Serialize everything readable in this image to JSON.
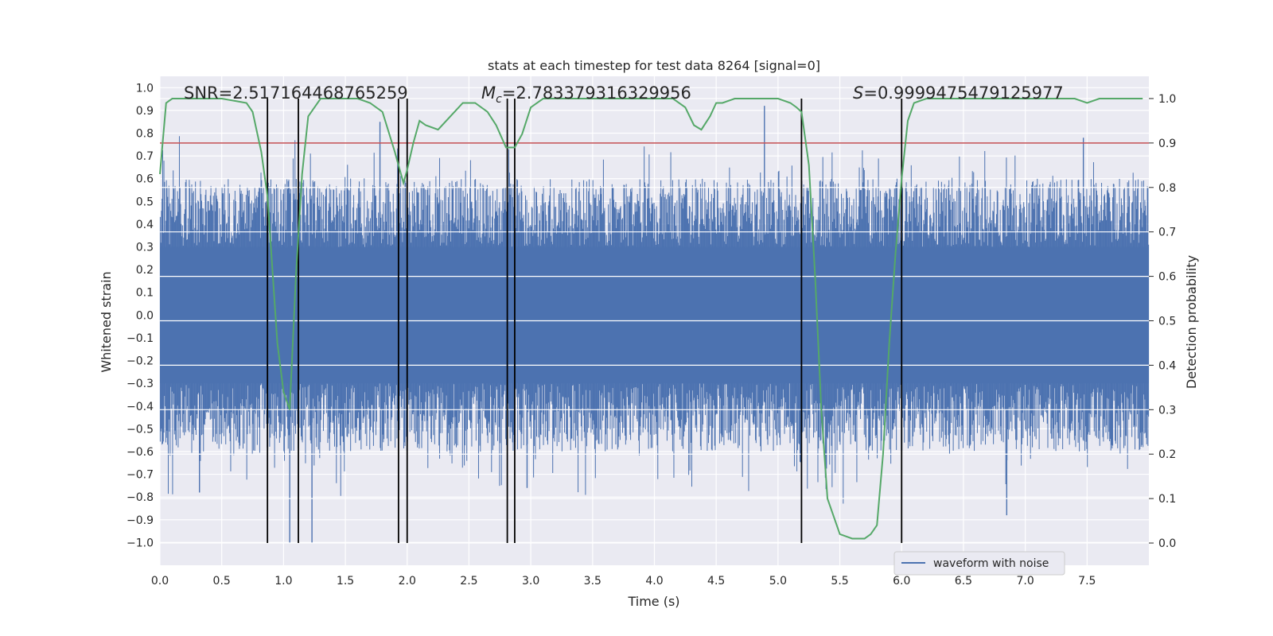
{
  "chart_data": {
    "type": "line",
    "title": "stats at each timestep for test data 8264 [signal=0]",
    "xlabel": "Time (s)",
    "ylabel": "Whitened strain",
    "y2label": "Detection probability",
    "xlim": [
      0.0,
      8.0
    ],
    "ylim": [
      -1.1,
      1.05
    ],
    "y2lim": [
      -0.05,
      1.05
    ],
    "x_ticks": [
      "0.0",
      "0.5",
      "1.0",
      "1.5",
      "2.0",
      "2.5",
      "3.0",
      "3.5",
      "4.0",
      "4.5",
      "5.0",
      "5.5",
      "6.0",
      "6.5",
      "7.0",
      "7.5"
    ],
    "y_ticks": [
      "1.0",
      "0.9",
      "0.8",
      "0.7",
      "0.6",
      "0.5",
      "0.4",
      "0.3",
      "0.2",
      "0.1",
      "0.0",
      "−0.1",
      "−0.2",
      "−0.3",
      "−0.4",
      "−0.5",
      "−0.6",
      "−0.7",
      "−0.8",
      "−0.9",
      "−1.0"
    ],
    "y2_ticks": [
      "1.0",
      "0.9",
      "0.8",
      "0.7",
      "0.6",
      "0.5",
      "0.4",
      "0.3",
      "0.2",
      "0.1",
      "0.0"
    ],
    "annotations": {
      "snr": "SNR=2.517164468765259",
      "mc_symbol": "M",
      "mc_sub": "c",
      "mc_value": "=2.783379316329956",
      "s_symbol": "S",
      "s_value": "=0.9999475479125977"
    },
    "legend": {
      "label": "waveform with noise",
      "position": "lower-right"
    },
    "threshold": {
      "y2": 0.9,
      "color": "#c44e52"
    },
    "vlines": [
      0.87,
      1.12,
      1.93,
      2.0,
      2.81,
      2.87,
      5.19,
      6.0
    ],
    "waveform": {
      "name": "waveform with noise",
      "color": "#4c72b0",
      "seed": 8264,
      "n_bars": 1600,
      "band_min": 0.3,
      "band_max": 0.6,
      "notable_spikes": [
        {
          "x": 1.05,
          "y": -1.0
        },
        {
          "x": 1.23,
          "y": -1.0
        },
        {
          "x": 1.78,
          "y": 0.85
        },
        {
          "x": 4.89,
          "y": 0.92
        },
        {
          "x": 6.85,
          "y": -0.88
        },
        {
          "x": 2.97,
          "y": -0.76
        },
        {
          "x": 0.32,
          "y": -0.78
        },
        {
          "x": 7.47,
          "y": 0.78
        }
      ]
    },
    "probability": {
      "name": "detection probability",
      "color": "#55a868",
      "x": [
        0.0,
        0.05,
        0.1,
        0.2,
        0.3,
        0.5,
        0.7,
        0.75,
        0.82,
        0.87,
        0.95,
        1.0,
        1.05,
        1.1,
        1.15,
        1.2,
        1.3,
        1.4,
        1.5,
        1.6,
        1.7,
        1.8,
        1.9,
        1.97,
        2.0,
        2.05,
        2.1,
        2.15,
        2.25,
        2.35,
        2.45,
        2.55,
        2.65,
        2.72,
        2.8,
        2.87,
        2.93,
        3.0,
        3.1,
        3.2,
        3.4,
        3.7,
        4.0,
        4.15,
        4.25,
        4.32,
        4.38,
        4.45,
        4.5,
        4.55,
        4.65,
        4.8,
        5.0,
        5.1,
        5.15,
        5.19,
        5.25,
        5.3,
        5.35,
        5.4,
        5.5,
        5.6,
        5.7,
        5.75,
        5.8,
        5.85,
        5.9,
        5.95,
        6.0,
        6.05,
        6.1,
        6.2,
        6.4,
        6.6,
        6.8,
        7.0,
        7.2,
        7.4,
        7.5,
        7.6,
        7.8,
        7.95
      ],
      "y": [
        0.83,
        0.99,
        1.0,
        1.0,
        1.0,
        1.0,
        0.99,
        0.97,
        0.88,
        0.78,
        0.45,
        0.34,
        0.3,
        0.6,
        0.83,
        0.96,
        1.0,
        1.0,
        1.0,
        1.0,
        0.99,
        0.97,
        0.88,
        0.81,
        0.84,
        0.9,
        0.95,
        0.94,
        0.93,
        0.96,
        0.99,
        0.99,
        0.97,
        0.94,
        0.89,
        0.89,
        0.92,
        0.98,
        1.0,
        1.0,
        1.0,
        1.0,
        1.0,
        1.0,
        0.98,
        0.94,
        0.93,
        0.96,
        0.99,
        0.99,
        1.0,
        1.0,
        1.0,
        0.99,
        0.98,
        0.97,
        0.85,
        0.6,
        0.3,
        0.1,
        0.02,
        0.01,
        0.01,
        0.02,
        0.04,
        0.2,
        0.45,
        0.65,
        0.82,
        0.95,
        0.99,
        1.0,
        1.0,
        1.0,
        1.0,
        1.0,
        1.0,
        1.0,
        0.99,
        1.0,
        1.0,
        1.0
      ]
    }
  }
}
